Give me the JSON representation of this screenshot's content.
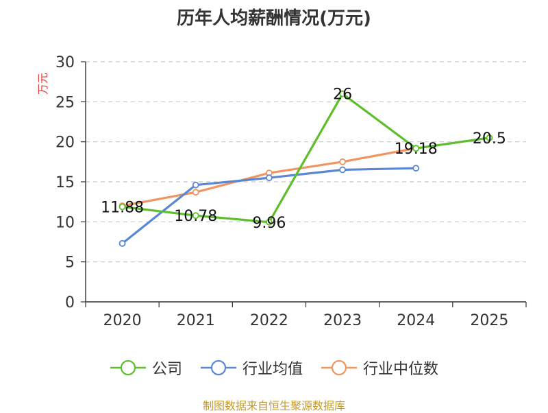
{
  "footer": "制图数据来自恒生聚源数据库",
  "chart_data": {
    "type": "line",
    "title": "历年人均薪酬情况(万元)",
    "ylabel": "万元",
    "ylim": [
      0,
      30
    ],
    "yticks": [
      0,
      5,
      10,
      15,
      20,
      25,
      30
    ],
    "categories": [
      "2020",
      "2021",
      "2022",
      "2023",
      "2024",
      "2025"
    ],
    "grid": true,
    "legend_position": "bottom",
    "series": [
      {
        "name": "公司",
        "color": "#5cbf2a",
        "values": [
          11.88,
          10.78,
          9.96,
          26,
          19.18,
          20.5
        ],
        "labels": [
          "11.88",
          "10.78",
          "9.96",
          "26",
          "19.18",
          "20.5"
        ]
      },
      {
        "name": "行业均值",
        "color": "#5b86d6",
        "values": [
          7.3,
          14.6,
          15.5,
          16.5,
          16.7,
          null
        ]
      },
      {
        "name": "行业中位数",
        "color": "#f09460",
        "values": [
          12,
          13.7,
          16.1,
          17.5,
          19.2,
          null
        ]
      }
    ]
  }
}
